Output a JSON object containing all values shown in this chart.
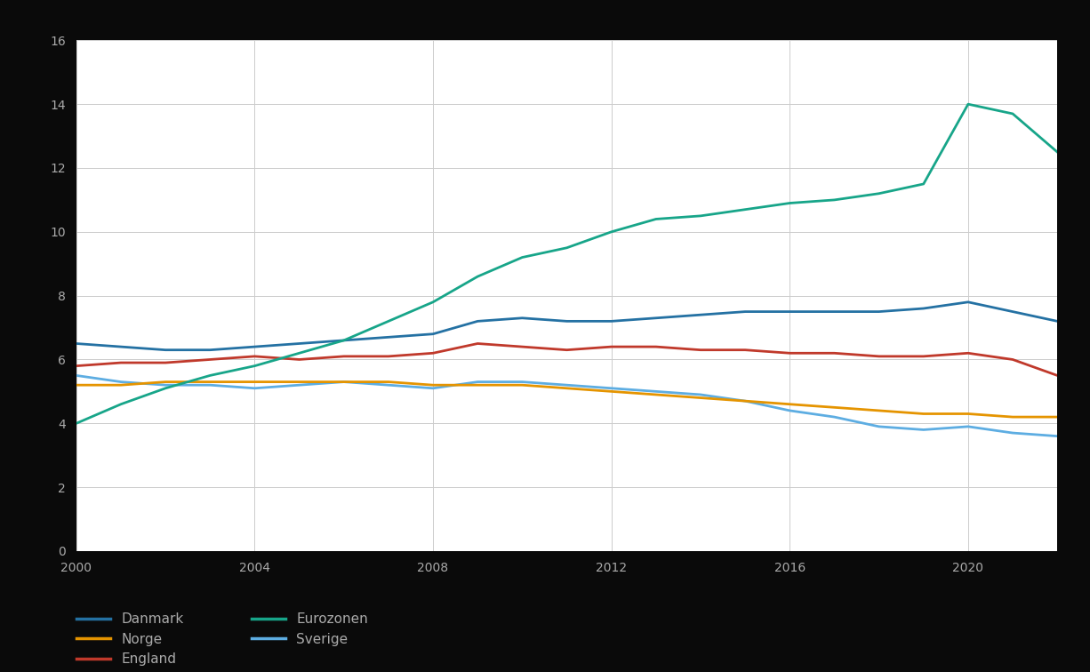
{
  "years": [
    2000,
    2001,
    2002,
    2003,
    2004,
    2005,
    2006,
    2007,
    2008,
    2009,
    2010,
    2011,
    2012,
    2013,
    2014,
    2015,
    2016,
    2017,
    2018,
    2019,
    2020,
    2021,
    2022
  ],
  "series": {
    "dark_blue": {
      "color": "#2471A3",
      "label": "Danmark",
      "data": [
        6.5,
        6.4,
        6.3,
        6.3,
        6.4,
        6.5,
        6.6,
        6.7,
        6.8,
        7.2,
        7.3,
        7.2,
        7.2,
        7.3,
        7.4,
        7.5,
        7.5,
        7.5,
        7.5,
        7.6,
        7.8,
        7.5,
        7.2
      ]
    },
    "red": {
      "color": "#C0392B",
      "label": "England",
      "data": [
        5.8,
        5.9,
        5.9,
        6.0,
        6.1,
        6.0,
        6.1,
        6.1,
        6.2,
        6.5,
        6.4,
        6.3,
        6.4,
        6.4,
        6.3,
        6.3,
        6.2,
        6.2,
        6.1,
        6.1,
        6.2,
        6.0,
        5.5
      ]
    },
    "light_blue": {
      "color": "#5DADE2",
      "label": "Sverige",
      "data": [
        5.5,
        5.3,
        5.2,
        5.2,
        5.1,
        5.2,
        5.3,
        5.2,
        5.1,
        5.3,
        5.3,
        5.2,
        5.1,
        5.0,
        4.9,
        4.7,
        4.4,
        4.2,
        3.9,
        3.8,
        3.9,
        3.7,
        3.6
      ]
    },
    "orange": {
      "color": "#E59400",
      "label": "Norge",
      "data": [
        5.2,
        5.2,
        5.3,
        5.3,
        5.3,
        5.3,
        5.3,
        5.3,
        5.2,
        5.2,
        5.2,
        5.1,
        5.0,
        4.9,
        4.8,
        4.7,
        4.6,
        4.5,
        4.4,
        4.3,
        4.3,
        4.2,
        4.2
      ]
    },
    "teal": {
      "color": "#17A589",
      "label": "Eurozonen",
      "data": [
        4.0,
        4.6,
        5.1,
        5.5,
        5.8,
        6.2,
        6.6,
        7.2,
        7.8,
        8.6,
        9.2,
        9.5,
        10.0,
        10.4,
        10.5,
        10.7,
        10.9,
        11.0,
        11.2,
        11.5,
        14.0,
        13.7,
        12.5
      ]
    }
  },
  "series_order": [
    "dark_blue",
    "red",
    "light_blue",
    "orange",
    "teal"
  ],
  "legend_order": [
    "dark_blue",
    "orange",
    "red",
    "teal",
    "light_blue"
  ],
  "ylim": [
    0,
    16
  ],
  "ytick_step": 2,
  "background_color": "#0a0a0a",
  "plot_bg_color": "#ffffff",
  "grid_color": "#cccccc",
  "text_color": "#cccccc",
  "axis_color": "#888888",
  "tick_label_color": "#aaaaaa",
  "legend_cols": 2
}
